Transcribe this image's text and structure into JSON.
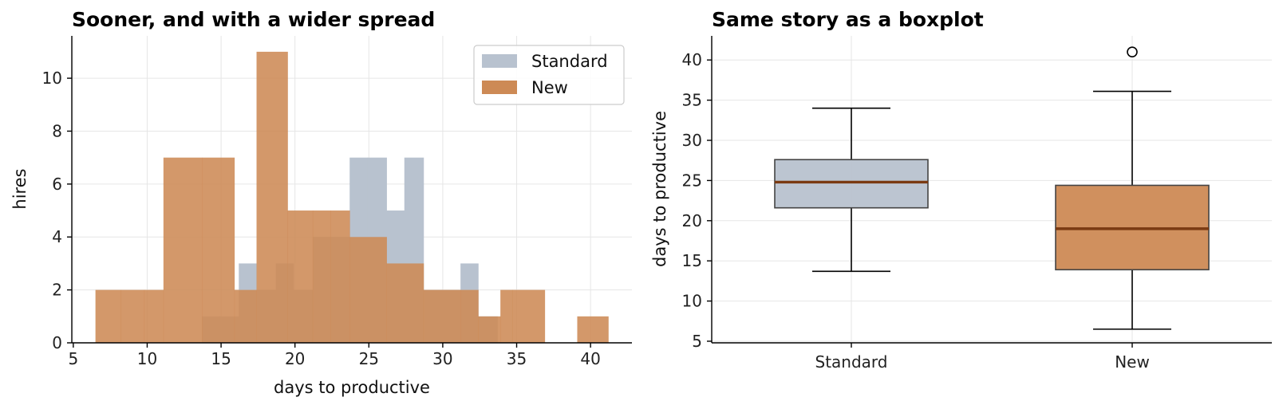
{
  "colors": {
    "standard": "#b8c2cf",
    "new": "#cd8a55",
    "overlap": "#b8875f",
    "median": "#7a3a12"
  },
  "chart_data": [
    {
      "type": "histogram",
      "title": "Sooner, and with a wider spread",
      "xlabel": "days to productive",
      "ylabel": "hires",
      "xlim": [
        4.9,
        42.8
      ],
      "ylim": [
        0,
        11.6
      ],
      "xticks": [
        5,
        10,
        15,
        20,
        25,
        30,
        35,
        40
      ],
      "yticks": [
        0,
        2,
        4,
        6,
        8,
        10
      ],
      "grid": true,
      "legend": {
        "position": "top-right",
        "entries": [
          "Standard",
          "New"
        ]
      },
      "series": [
        {
          "name": "Standard",
          "bins": [
            {
              "x0": 13.7,
              "x1": 14.9,
              "count": 1
            },
            {
              "x0": 14.9,
              "x1": 16.2,
              "count": 1
            },
            {
              "x0": 16.2,
              "x1": 17.4,
              "count": 3
            },
            {
              "x0": 17.4,
              "x1": 18.7,
              "count": 2
            },
            {
              "x0": 18.7,
              "x1": 19.9,
              "count": 3
            },
            {
              "x0": 19.9,
              "x1": 21.2,
              "count": 2
            },
            {
              "x0": 21.2,
              "x1": 22.4,
              "count": 4
            },
            {
              "x0": 22.4,
              "x1": 23.7,
              "count": 4
            },
            {
              "x0": 23.7,
              "x1": 24.9,
              "count": 7
            },
            {
              "x0": 24.9,
              "x1": 26.2,
              "count": 7
            },
            {
              "x0": 26.2,
              "x1": 27.4,
              "count": 5
            },
            {
              "x0": 27.4,
              "x1": 28.7,
              "count": 7
            },
            {
              "x0": 28.7,
              "x1": 29.9,
              "count": 2
            },
            {
              "x0": 29.9,
              "x1": 31.2,
              "count": 2
            },
            {
              "x0": 31.2,
              "x1": 32.4,
              "count": 3
            },
            {
              "x0": 32.4,
              "x1": 33.7,
              "count": 1
            }
          ]
        },
        {
          "name": "New",
          "bins": [
            {
              "x0": 6.5,
              "x1": 8.2,
              "count": 2
            },
            {
              "x0": 8.2,
              "x1": 9.8,
              "count": 2
            },
            {
              "x0": 9.8,
              "x1": 11.1,
              "count": 2
            },
            {
              "x0": 11.1,
              "x1": 13.7,
              "count": 7
            },
            {
              "x0": 13.7,
              "x1": 15.9,
              "count": 7
            },
            {
              "x0": 15.9,
              "x1": 17.4,
              "count": 2
            },
            {
              "x0": 17.4,
              "x1": 19.5,
              "count": 11
            },
            {
              "x0": 19.5,
              "x1": 21.2,
              "count": 5
            },
            {
              "x0": 21.2,
              "x1": 22.4,
              "count": 5
            },
            {
              "x0": 22.4,
              "x1": 23.7,
              "count": 5
            },
            {
              "x0": 23.7,
              "x1": 26.2,
              "count": 4
            },
            {
              "x0": 26.2,
              "x1": 28.7,
              "count": 3
            },
            {
              "x0": 28.7,
              "x1": 31.2,
              "count": 2
            },
            {
              "x0": 31.2,
              "x1": 32.4,
              "count": 2
            },
            {
              "x0": 32.4,
              "x1": 33.9,
              "count": 1
            },
            {
              "x0": 33.9,
              "x1": 34.7,
              "count": 2
            },
            {
              "x0": 34.7,
              "x1": 36.9,
              "count": 2
            },
            {
              "x0": 39.1,
              "x1": 41.2,
              "count": 1
            }
          ]
        }
      ]
    },
    {
      "type": "boxplot",
      "title": "Same story as a boxplot",
      "xlabel": "",
      "ylabel": "days to productive",
      "ylim": [
        4.8,
        43.0
      ],
      "yticks": [
        5,
        10,
        15,
        20,
        25,
        30,
        35,
        40
      ],
      "categories": [
        "Standard",
        "New"
      ],
      "grid": true,
      "boxes": [
        {
          "name": "Standard",
          "whisker_low": 13.7,
          "q1": 21.6,
          "median": 24.8,
          "q3": 27.6,
          "whisker_high": 34.0,
          "outliers": []
        },
        {
          "name": "New",
          "whisker_low": 6.5,
          "q1": 13.9,
          "median": 19.0,
          "q3": 24.4,
          "whisker_high": 36.1,
          "outliers": [
            41.0
          ]
        }
      ]
    }
  ]
}
